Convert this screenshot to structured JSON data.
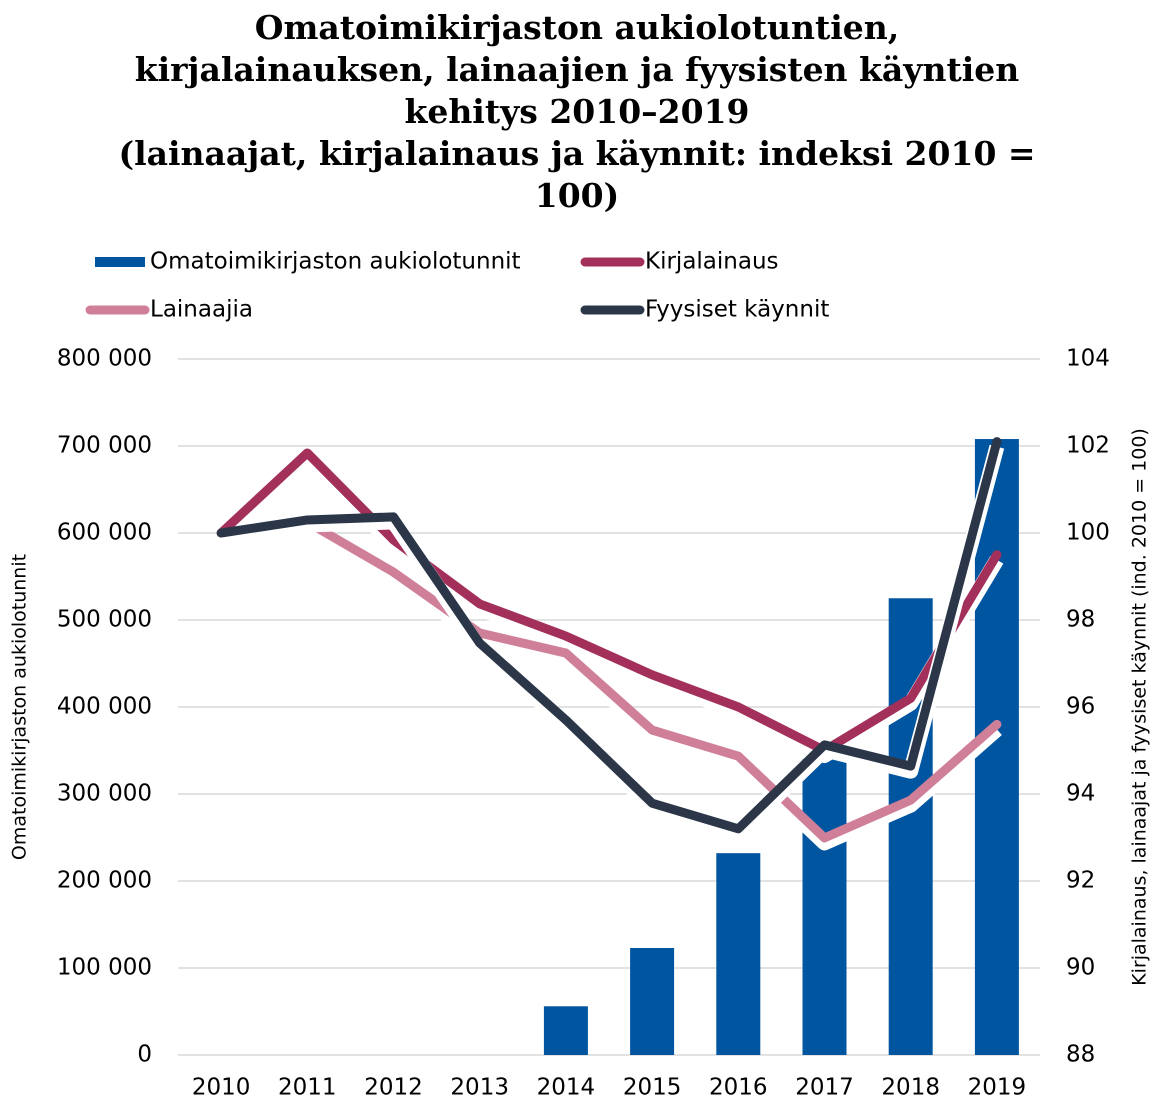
{
  "chart_data": {
    "type": "bar_line",
    "title": [
      "Omatoimikirjaston aukiolotuntien,",
      "kirjalainauksen, lainaajien ja fyysisten käyntien",
      "kehitys 2010–2019",
      "(lainaajat, kirjalainaus ja käynnit: indeksi 2010 =",
      "100)"
    ],
    "ylabel": "Omatoimikirjaston aukiolotunnit",
    "y2label": "Kirjalainaus, lainaajat ja fyysiset käynnit (ind. 2010 = 100)",
    "categories": [
      "2010",
      "2011",
      "2012",
      "2013",
      "2014",
      "2015",
      "2016",
      "2017",
      "2018",
      "2019"
    ],
    "series": [
      {
        "name": "Omatoimikirjaston aukiolotunnit",
        "type": "bar",
        "color": "#0055a0",
        "values": [
          0,
          0,
          0,
          0,
          56000,
          123000,
          232000,
          340000,
          525000,
          708000
        ]
      },
      {
        "name": "Kirjalainaus",
        "type": "line",
        "axis": "y2",
        "color": "#a3305a",
        "values": [
          100,
          101.84,
          99.84,
          98.37,
          97.63,
          96.74,
          96.0,
          95.0,
          96.2,
          99.5
        ]
      },
      {
        "name": "Lainaajia",
        "type": "line",
        "axis": "y2",
        "color": "#d07f98",
        "values": [
          100,
          100.25,
          99.1,
          97.7,
          97.24,
          95.47,
          94.87,
          92.99,
          93.86,
          95.6
        ]
      },
      {
        "name": "Fyysiset käynnit",
        "type": "line",
        "axis": "y2",
        "color": "#2b3648",
        "values": [
          100,
          100.3,
          100.37,
          97.47,
          95.7,
          93.79,
          93.2,
          95.13,
          94.64,
          102.1
        ]
      }
    ],
    "ylim": [
      0,
      800000
    ],
    "yticks": [
      {
        "value": 0,
        "label": "0"
      },
      {
        "value": 100000,
        "label": "100 000"
      },
      {
        "value": 200000,
        "label": "200 000"
      },
      {
        "value": 300000,
        "label": "300 000"
      },
      {
        "value": 400000,
        "label": "400 000"
      },
      {
        "value": 500000,
        "label": "500 000"
      },
      {
        "value": 600000,
        "label": "600 000"
      },
      {
        "value": 700000,
        "label": "700 000"
      },
      {
        "value": 800000,
        "label": "800 000"
      }
    ],
    "y2lim": [
      88,
      104
    ],
    "y2ticks": [
      88,
      90,
      92,
      94,
      96,
      98,
      100,
      102,
      104
    ],
    "grid": true,
    "legend": "top"
  }
}
